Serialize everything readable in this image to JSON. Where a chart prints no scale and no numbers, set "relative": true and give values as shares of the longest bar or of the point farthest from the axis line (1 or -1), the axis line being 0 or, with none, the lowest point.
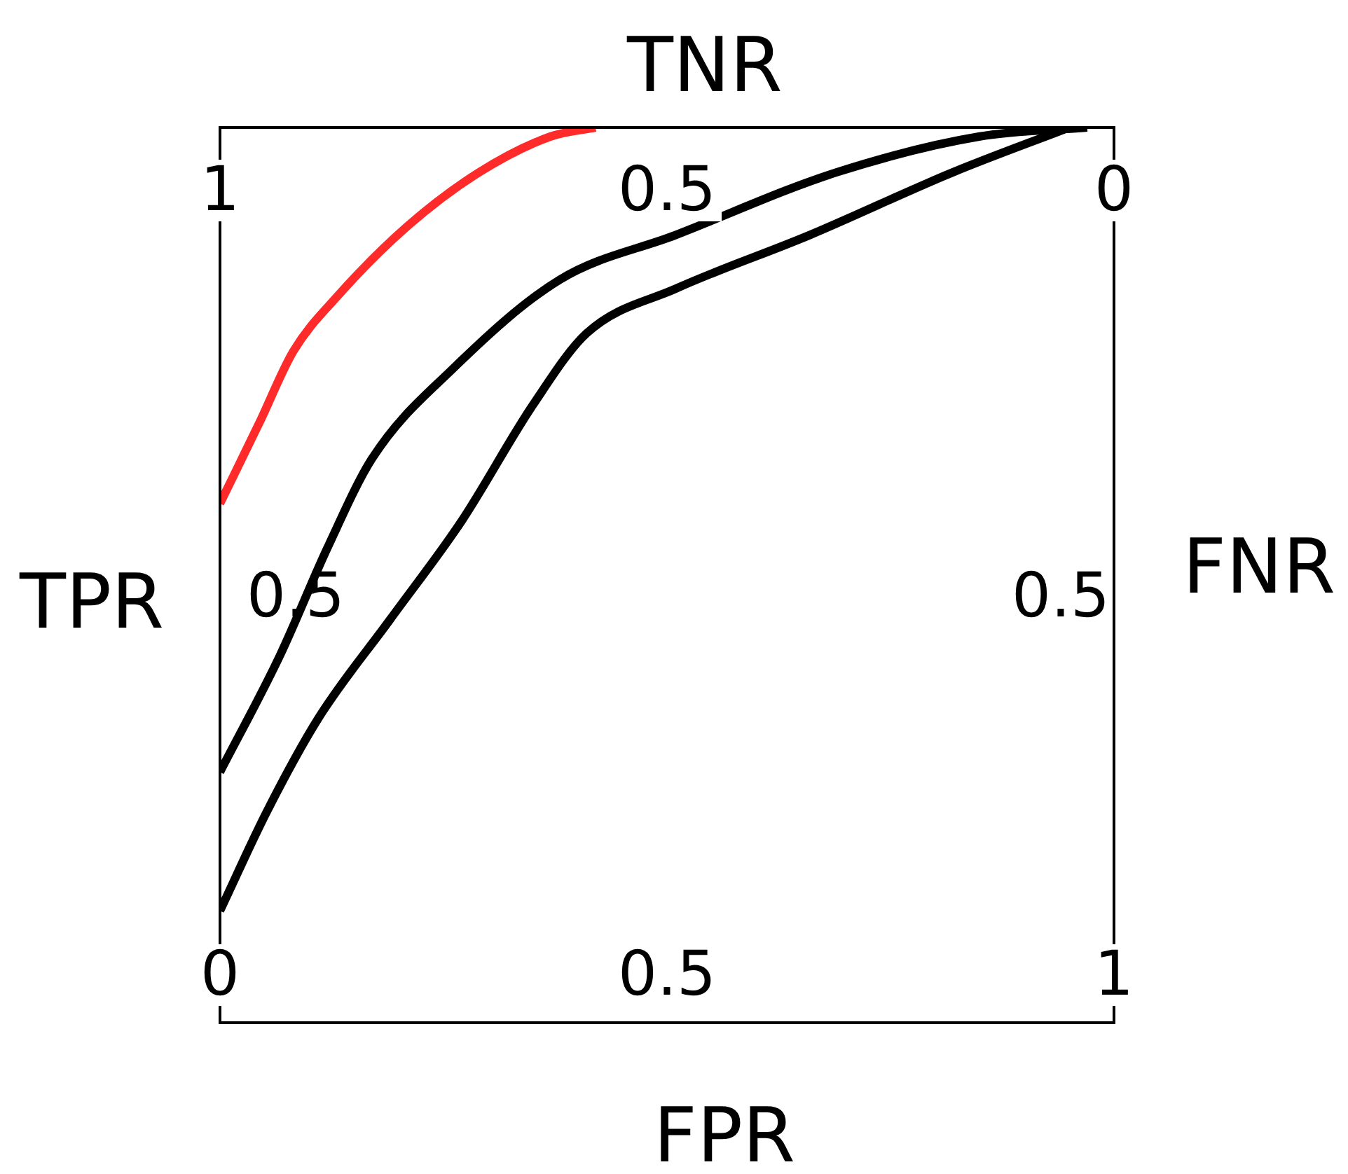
{
  "chart_data": {
    "type": "line",
    "xlabel": "FPR",
    "ylabel": "TPR",
    "x2label": "TNR",
    "y2label": "FNR",
    "xlim": [
      0,
      1
    ],
    "xticks": [
      0,
      0.5,
      1
    ],
    "x2lim": [
      1,
      0
    ],
    "x2ticks": [
      1,
      0.5,
      0
    ],
    "relative": true,
    "annotations": [
      "0.5",
      "0.5"
    ],
    "grid": false,
    "legend": false,
    "marker": "none",
    "line_style": "solid",
    "series": [
      {
        "color": "#ff2a2a",
        "x": [
          0,
          0.044,
          0.082,
          0.13,
          0.21,
          0.29,
          0.37,
          0.42
        ],
        "values": [
          0.58,
          0.67,
          0.75,
          0.81,
          0.89,
          0.95,
          0.99,
          1.0
        ]
      },
      {
        "color": "#000000",
        "x": [
          0,
          0.067,
          0.12,
          0.17,
          0.26,
          0.38,
          0.51,
          0.69,
          0.85,
          0.97
        ],
        "values": [
          0.28,
          0.41,
          0.53,
          0.63,
          0.73,
          0.83,
          0.88,
          0.95,
          0.99,
          1.0
        ]
      },
      {
        "color": "#000000",
        "x": [
          0,
          0.052,
          0.11,
          0.19,
          0.27,
          0.35,
          0.41,
          0.51,
          0.66,
          0.82,
          0.95
        ],
        "values": [
          0.125,
          0.235,
          0.34,
          0.45,
          0.56,
          0.69,
          0.77,
          0.82,
          0.88,
          0.95,
          1.0
        ]
      }
    ]
  }
}
